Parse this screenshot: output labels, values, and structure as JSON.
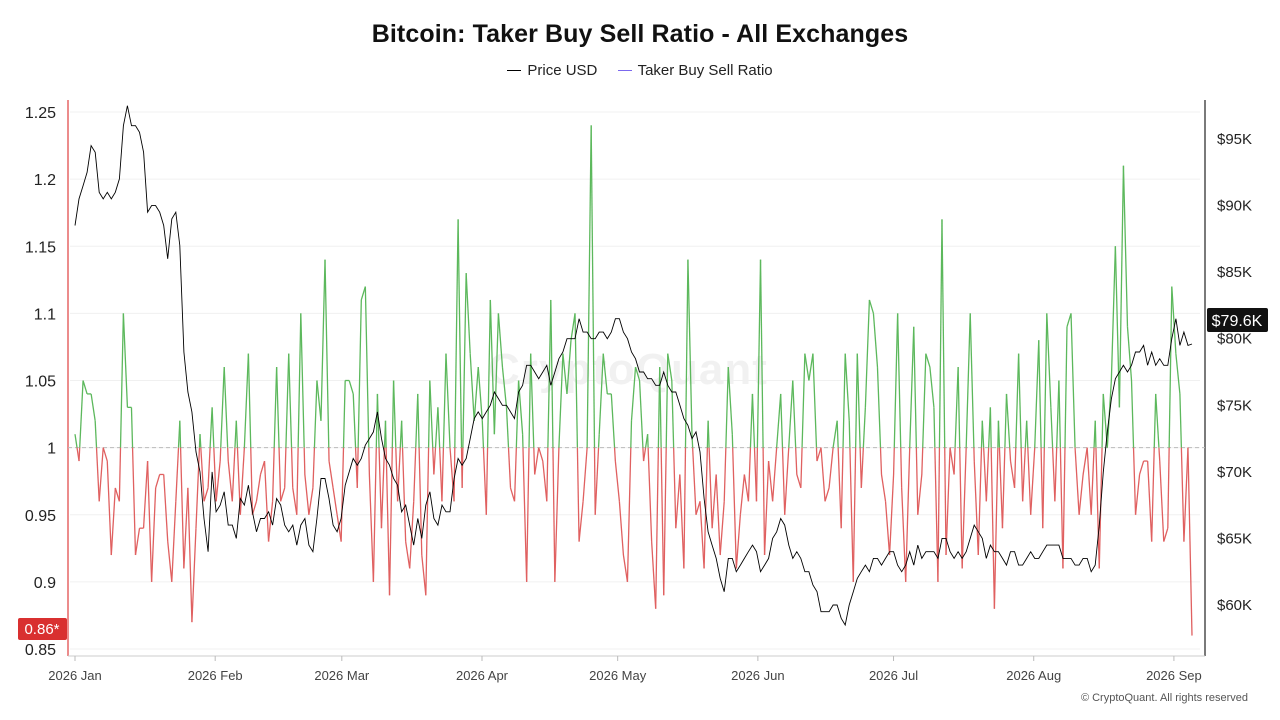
{
  "chart_data": {
    "type": "line",
    "title": "Bitcoin: Taker Buy Sell Ratio - All Exchanges",
    "legend": [
      "Price USD",
      "Taker Buy Sell Ratio"
    ],
    "legend_placement": "top-center",
    "colors": {
      "price": "#000000",
      "ratio_above": "#5cb85c",
      "ratio_below": "#e06060",
      "legend_ratio": "#7b68ee",
      "baseline": "#bbbbbb"
    },
    "x_ticks": [
      "2026 Jan",
      "2026 Feb",
      "2026 Mar",
      "2026 Apr",
      "2026 May",
      "2026 Jun",
      "2026 Jul",
      "2026 Aug",
      "2026 Sep"
    ],
    "y_left": {
      "ticks": [
        "1.25",
        "1.2",
        "1.15",
        "1.1",
        "1.05",
        "1",
        "0.95",
        "0.9",
        "0.85"
      ],
      "range": [
        0.85,
        1.25
      ],
      "baseline": 1.0
    },
    "y_right": {
      "ticks": [
        "$95K",
        "$90K",
        "$85K",
        "$80K",
        "$75K",
        "$70K",
        "$65K",
        "$60K"
      ],
      "range": [
        57000,
        98000
      ]
    },
    "current_ratio_label": "0.86*",
    "current_price_label": "$79.6K",
    "date_range": [
      "2026-01-01",
      "2026-09-05"
    ],
    "series": [
      {
        "name": "Taker Buy Sell Ratio",
        "axis": "left",
        "values": [
          1.01,
          0.99,
          1.05,
          1.04,
          1.04,
          1.02,
          0.96,
          1.0,
          0.99,
          0.92,
          0.97,
          0.96,
          1.1,
          1.03,
          1.03,
          0.92,
          0.94,
          0.94,
          0.99,
          0.9,
          0.97,
          0.98,
          0.98,
          0.93,
          0.9,
          0.96,
          1.02,
          0.91,
          0.97,
          0.87,
          0.94,
          1.01,
          0.96,
          0.97,
          1.03,
          0.96,
          0.99,
          1.06,
          0.99,
          0.96,
          1.02,
          0.95,
          1.0,
          1.07,
          0.95,
          0.96,
          0.98,
          0.99,
          0.93,
          0.96,
          1.06,
          0.96,
          0.97,
          1.07,
          0.97,
          0.95,
          1.1,
          0.98,
          0.95,
          0.97,
          1.05,
          1.02,
          1.14,
          0.99,
          0.97,
          0.95,
          0.93,
          1.05,
          1.05,
          1.04,
          0.97,
          1.11,
          1.12,
          0.98,
          0.9,
          1.04,
          0.94,
          1.02,
          0.89,
          1.05,
          0.96,
          1.02,
          0.93,
          0.91,
          0.96,
          1.04,
          0.92,
          0.89,
          1.05,
          0.98,
          1.03,
          0.96,
          1.07,
          1.0,
          0.96,
          1.17,
          0.97,
          1.13,
          1.07,
          1.02,
          1.06,
          1.02,
          0.95,
          1.11,
          1.01,
          1.1,
          1.06,
          1.03,
          0.97,
          0.96,
          1.05,
          1.01,
          0.9,
          1.07,
          0.98,
          1.0,
          0.99,
          0.96,
          1.11,
          0.9,
          1.0,
          1.07,
          1.04,
          1.08,
          1.1,
          0.93,
          0.96,
          1.0,
          1.24,
          0.95,
          1.01,
          1.07,
          1.04,
          1.04,
          0.99,
          0.96,
          0.92,
          0.9,
          1.02,
          1.06,
          1.05,
          0.99,
          1.01,
          0.93,
          0.88,
          1.06,
          0.89,
          1.07,
          1.05,
          0.94,
          0.98,
          0.91,
          1.14,
          1.01,
          0.95,
          0.96,
          0.91,
          1.02,
          0.94,
          0.98,
          0.92,
          0.96,
          1.06,
          1.01,
          0.91,
          0.95,
          0.98,
          0.96,
          1.04,
          0.96,
          1.14,
          0.92,
          0.99,
          0.96,
          1.0,
          1.04,
          0.95,
          1.0,
          1.05,
          0.98,
          0.97,
          1.07,
          1.05,
          1.07,
          0.99,
          1.0,
          0.96,
          0.97,
          1.0,
          1.02,
          0.94,
          1.07,
          1.02,
          0.9,
          1.07,
          0.97,
          1.03,
          1.11,
          1.1,
          1.06,
          0.98,
          0.96,
          0.92,
          0.98,
          1.1,
          0.97,
          0.9,
          1.0,
          1.09,
          0.95,
          0.98,
          1.07,
          1.06,
          1.03,
          0.9,
          1.17,
          0.92,
          1.0,
          0.98,
          1.06,
          0.91,
          1.0,
          1.1,
          0.99,
          0.92,
          1.02,
          0.96,
          1.03,
          0.88,
          1.02,
          0.94,
          1.04,
          0.99,
          0.97,
          1.07,
          0.96,
          1.02,
          0.95,
          1.0,
          1.08,
          0.94,
          1.1,
          1.03,
          0.96,
          1.05,
          0.91,
          1.09,
          1.1,
          1.0,
          0.95,
          0.98,
          1.0,
          0.95,
          1.02,
          0.91,
          1.04,
          1.0,
          1.05,
          1.15,
          1.03,
          1.21,
          1.09,
          1.05,
          0.95,
          0.98,
          0.99,
          0.99,
          0.93,
          1.04,
          0.99,
          0.93,
          0.94,
          1.12,
          1.07,
          1.04,
          0.93,
          1.0,
          0.86
        ]
      },
      {
        "name": "Price USD",
        "axis": "right",
        "values": [
          88500,
          90500,
          91500,
          92500,
          94500,
          94000,
          91000,
          90500,
          91000,
          90500,
          91000,
          92000,
          96000,
          97500,
          96000,
          96000,
          95500,
          94000,
          89500,
          90000,
          90000,
          89500,
          88500,
          86000,
          89000,
          89500,
          87000,
          79000,
          76000,
          74500,
          71500,
          70000,
          66500,
          64000,
          70000,
          67000,
          67500,
          68500,
          66000,
          66000,
          65000,
          68000,
          67500,
          69000,
          67000,
          65500,
          66500,
          66500,
          67000,
          66000,
          68000,
          67500,
          66000,
          65500,
          66000,
          64500,
          66000,
          66500,
          64500,
          64000,
          66500,
          69500,
          69500,
          68000,
          66000,
          65500,
          66500,
          69000,
          70000,
          71000,
          70500,
          71000,
          72000,
          72500,
          73000,
          74500,
          72500,
          71000,
          70500,
          69500,
          69000,
          67000,
          67500,
          66000,
          64500,
          66500,
          65000,
          67500,
          68500,
          66500,
          66000,
          67500,
          67000,
          67000,
          69500,
          71000,
          70500,
          71000,
          72500,
          74000,
          74500,
          74000,
          74500,
          75000,
          76000,
          75500,
          75000,
          75000,
          74500,
          74000,
          76000,
          76500,
          78000,
          78000,
          77500,
          77000,
          77500,
          78000,
          76500,
          77500,
          78500,
          79000,
          80000,
          80000,
          80000,
          81500,
          80500,
          80500,
          80000,
          80000,
          80500,
          80500,
          80000,
          80500,
          81500,
          81500,
          80500,
          80000,
          79000,
          78500,
          77500,
          77500,
          77000,
          77000,
          76500,
          76500,
          77500,
          76500,
          76000,
          76000,
          75000,
          74000,
          73500,
          72500,
          73000,
          71500,
          68000,
          65500,
          64500,
          63500,
          62000,
          61000,
          63500,
          63500,
          62500,
          63000,
          63500,
          64000,
          64500,
          64000,
          62500,
          63000,
          63500,
          65000,
          65500,
          66500,
          66000,
          64500,
          63500,
          64000,
          63500,
          62500,
          62500,
          61500,
          61000,
          59500,
          59500,
          59500,
          60000,
          60000,
          59000,
          58500,
          60000,
          61000,
          62000,
          62500,
          63000,
          62500,
          63500,
          63500,
          63000,
          63500,
          64000,
          64000,
          63000,
          62500,
          63000,
          64000,
          63000,
          64500,
          63500,
          64000,
          64000,
          64000,
          63500,
          65000,
          65000,
          64000,
          63500,
          64000,
          63500,
          64000,
          65000,
          66000,
          65500,
          65000,
          63500,
          64500,
          64000,
          64000,
          63500,
          63000,
          64000,
          64000,
          63000,
          63000,
          63500,
          64000,
          63500,
          63500,
          64000,
          64500,
          64500,
          64500,
          64500,
          63500,
          63500,
          63500,
          63000,
          63000,
          63500,
          63500,
          62500,
          63000,
          66000,
          70000,
          73000,
          75500,
          77000,
          77500,
          78000,
          77500,
          78000,
          79000,
          79000,
          79500,
          78000,
          79000,
          78000,
          78500,
          78000,
          78000,
          80000,
          81500,
          79500,
          80500,
          79500,
          79600
        ]
      }
    ]
  },
  "footer": {
    "copyright": "© CryptoQuant. All rights reserved"
  },
  "watermark": "CryptoQuant"
}
